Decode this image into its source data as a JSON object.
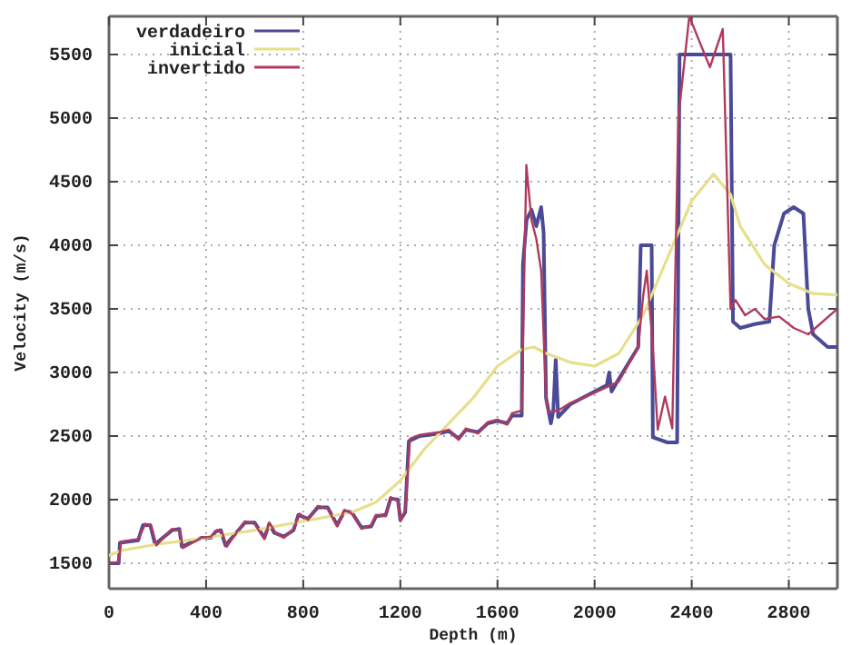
{
  "chart_data": {
    "type": "line",
    "xlabel": "Depth (m)",
    "ylabel": "Velocity (m/s)",
    "xlim": [
      0,
      3000
    ],
    "xticks": [
      0,
      400,
      800,
      1200,
      1600,
      2000,
      2400,
      2800
    ],
    "ylim": [
      1300,
      5800
    ],
    "yticks": [
      1500,
      2000,
      2500,
      3000,
      3500,
      4000,
      4500,
      5000,
      5500
    ],
    "grid": true,
    "legend": "top left",
    "line_style": "solid",
    "marker": "none",
    "series": [
      {
        "name": "verdadeiro",
        "color": "#4a4a96",
        "x": [
          0,
          40,
          45,
          120,
          140,
          170,
          190,
          260,
          290,
          300,
          380,
          420,
          440,
          460,
          480,
          520,
          560,
          600,
          640,
          660,
          680,
          720,
          760,
          780,
          820,
          860,
          900,
          940,
          970,
          1000,
          1040,
          1080,
          1100,
          1140,
          1160,
          1190,
          1200,
          1220,
          1235,
          1280,
          1360,
          1400,
          1440,
          1470,
          1520,
          1560,
          1600,
          1640,
          1660,
          1700,
          1705,
          1720,
          1740,
          1760,
          1780,
          1790,
          1800,
          1820,
          1830,
          1840,
          1850,
          1900,
          2000,
          2050,
          2060,
          2070,
          2100,
          2180,
          2190,
          2235,
          2240,
          2300,
          2340,
          2350,
          2560,
          2570,
          2600,
          2660,
          2720,
          2740,
          2780,
          2820,
          2860,
          2880,
          2900,
          2960,
          3000
        ],
        "values": [
          1500,
          1500,
          1660,
          1680,
          1800,
          1800,
          1650,
          1760,
          1770,
          1630,
          1700,
          1700,
          1750,
          1760,
          1640,
          1730,
          1820,
          1820,
          1700,
          1810,
          1740,
          1710,
          1760,
          1880,
          1850,
          1940,
          1940,
          1800,
          1910,
          1900,
          1780,
          1790,
          1870,
          1880,
          2010,
          2000,
          1840,
          1900,
          2460,
          2500,
          2520,
          2540,
          2480,
          2550,
          2530,
          2600,
          2620,
          2600,
          2660,
          2660,
          3850,
          4200,
          4280,
          4150,
          4300,
          4100,
          2800,
          2600,
          2700,
          3100,
          2650,
          2750,
          2850,
          2900,
          3000,
          2850,
          2950,
          3200,
          4000,
          4000,
          2490,
          2450,
          2450,
          5500,
          5500,
          3400,
          3350,
          3380,
          3400,
          4000,
          4250,
          4300,
          4250,
          3500,
          3300,
          3200,
          3200
        ]
      },
      {
        "name": "inicial",
        "color": "#e6df8c",
        "x": [
          0,
          50,
          200,
          400,
          600,
          800,
          1000,
          1100,
          1200,
          1300,
          1400,
          1500,
          1600,
          1700,
          1750,
          1800,
          1900,
          2000,
          2100,
          2200,
          2300,
          2400,
          2490,
          2560,
          2600,
          2700,
          2800,
          2900,
          3000
        ],
        "values": [
          1560,
          1600,
          1650,
          1700,
          1760,
          1830,
          1900,
          1980,
          2150,
          2400,
          2600,
          2800,
          3050,
          3180,
          3200,
          3150,
          3080,
          3050,
          3150,
          3450,
          3900,
          4350,
          4560,
          4400,
          4150,
          3850,
          3700,
          3620,
          3610
        ]
      },
      {
        "name": "invertido",
        "color": "#b03a5c",
        "x": [
          0,
          40,
          50,
          120,
          150,
          175,
          195,
          260,
          290,
          305,
          380,
          420,
          445,
          465,
          485,
          525,
          560,
          600,
          640,
          660,
          690,
          720,
          760,
          785,
          820,
          860,
          900,
          940,
          970,
          1000,
          1040,
          1080,
          1100,
          1140,
          1160,
          1190,
          1200,
          1220,
          1240,
          1280,
          1360,
          1400,
          1440,
          1470,
          1520,
          1560,
          1600,
          1640,
          1660,
          1700,
          1719,
          1740,
          1760,
          1780,
          1800,
          1810,
          1850,
          1900,
          2000,
          2100,
          2180,
          2200,
          2215,
          2240,
          2260,
          2290,
          2320,
          2345,
          2390,
          2475,
          2528,
          2560,
          2580,
          2620,
          2660,
          2700,
          2760,
          2820,
          2880,
          3000
        ],
        "values": [
          1500,
          1510,
          1670,
          1690,
          1810,
          1790,
          1640,
          1770,
          1760,
          1620,
          1700,
          1710,
          1760,
          1750,
          1630,
          1740,
          1830,
          1810,
          1690,
          1820,
          1730,
          1700,
          1770,
          1890,
          1840,
          1950,
          1930,
          1790,
          1920,
          1890,
          1770,
          1800,
          1880,
          1870,
          2020,
          1990,
          1830,
          1920,
          2480,
          2510,
          2530,
          2550,
          2470,
          2560,
          2520,
          2610,
          2630,
          2590,
          2680,
          2700,
          4630,
          4200,
          4050,
          3800,
          2800,
          2690,
          2700,
          2760,
          2840,
          2930,
          3200,
          3600,
          3800,
          3200,
          2550,
          2810,
          2560,
          5000,
          5800,
          5400,
          5700,
          3500,
          3570,
          3450,
          3500,
          3420,
          3440,
          3350,
          3300,
          3500
        ]
      }
    ]
  }
}
